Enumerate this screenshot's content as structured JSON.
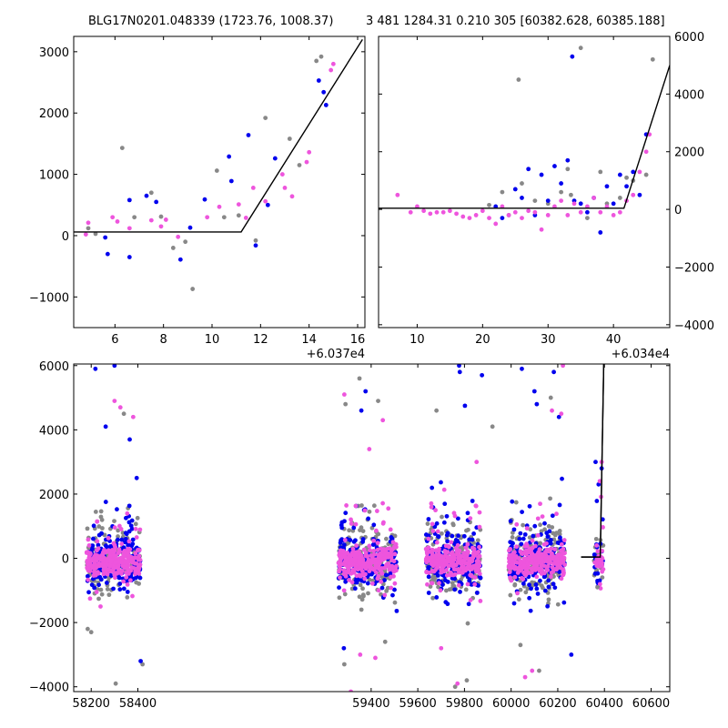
{
  "titles": {
    "left": "BLG17N0201.048339 (1723.76, 1008.37)",
    "right": "3 481 1284.31 0.210 305 [60382.628, 60385.188]"
  },
  "colors": {
    "point_a": "#0000ee",
    "point_b": "#ee55dd",
    "point_c": "#888888",
    "model": "#000000"
  },
  "chart_data": [
    {
      "type": "scatter",
      "title": "BLG17N0201.048339 (1723.76, 1008.37)",
      "xlabel": "",
      "ylabel": "",
      "x_offset_label": "+6.037e4",
      "xlim": [
        4.3,
        16.3
      ],
      "ylim": [
        -1500,
        3250
      ],
      "xticks": [
        6,
        8,
        10,
        12,
        14,
        16
      ],
      "xtick_labels": [
        "6",
        "8",
        "10",
        "12",
        "14",
        "16"
      ],
      "yticks": [
        -1000,
        0,
        1000,
        2000,
        3000
      ],
      "ytick_labels": [
        "−1000",
        "0",
        "1000",
        "2000",
        "3000"
      ],
      "y_axis_side": "left",
      "model_line": {
        "x": [
          4.3,
          11.2,
          16.2
        ],
        "y": [
          60,
          60,
          3200
        ]
      },
      "series": [
        {
          "color": "gray",
          "x": [
            4.9,
            5.2,
            6.3,
            6.8,
            7.5,
            7.9,
            8.4,
            8.9,
            9.2,
            10.2,
            10.5,
            11.1,
            11.8,
            12.2,
            13.2,
            13.6,
            14.3,
            14.5
          ],
          "y": [
            120,
            30,
            1430,
            300,
            700,
            310,
            -200,
            -100,
            -870,
            1060,
            300,
            330,
            -80,
            1920,
            1580,
            1150,
            2850,
            2920
          ]
        },
        {
          "color": "blue",
          "x": [
            5.6,
            5.7,
            6.6,
            6.6,
            7.3,
            7.7,
            8.7,
            9.1,
            9.7,
            10.7,
            10.8,
            11.5,
            11.8,
            12.3,
            12.6,
            14.4,
            14.6,
            14.7
          ],
          "y": [
            -30,
            -300,
            580,
            -350,
            650,
            550,
            -390,
            130,
            590,
            1290,
            890,
            1640,
            -160,
            500,
            1260,
            2530,
            2340,
            2130
          ]
        },
        {
          "color": "pink",
          "x": [
            4.8,
            4.9,
            5.9,
            6.1,
            6.6,
            7.5,
            7.9,
            8.1,
            8.6,
            9.8,
            10.3,
            11.1,
            11.4,
            11.7,
            12.2,
            12.9,
            13.0,
            13.3,
            13.9,
            14.0,
            14.9,
            15.0
          ],
          "y": [
            20,
            210,
            300,
            230,
            120,
            250,
            150,
            260,
            -20,
            300,
            470,
            510,
            290,
            780,
            560,
            1000,
            780,
            640,
            1200,
            1360,
            2700,
            2800
          ]
        }
      ]
    },
    {
      "type": "scatter",
      "title": "3 481 1284.31 0.210 305 [60382.628, 60385.188]",
      "xlabel": "",
      "ylabel": "",
      "x_offset_label": "+6.034e4",
      "xlim": [
        4.1,
        48.6
      ],
      "ylim": [
        -4100,
        6000
      ],
      "xticks": [
        10,
        20,
        30,
        40
      ],
      "xtick_labels": [
        "10",
        "20",
        "30",
        "40"
      ],
      "yticks": [
        -4000,
        -2000,
        0,
        2000,
        4000,
        6000
      ],
      "ytick_labels": [
        "−4000",
        "−2000",
        "0",
        "2000",
        "4000",
        "6000"
      ],
      "y_axis_side": "right",
      "model_line": {
        "x": [
          4.1,
          41.6,
          48.6
        ],
        "y": [
          40,
          40,
          5000
        ]
      },
      "series": [
        {
          "color": "gray",
          "x": [
            21,
            23,
            24,
            25.5,
            26,
            28,
            30,
            32,
            33,
            33.5,
            35,
            36,
            38,
            39,
            41,
            42,
            43,
            45,
            46
          ],
          "y": [
            150,
            600,
            -200,
            4500,
            900,
            300,
            200,
            600,
            1400,
            500,
            5600,
            -300,
            1300,
            200,
            400,
            1100,
            1000,
            1200,
            5200
          ]
        },
        {
          "color": "blue",
          "x": [
            22,
            23,
            25,
            26,
            27,
            28,
            29,
            30,
            31,
            32,
            33,
            33.7,
            34,
            35,
            36,
            37,
            38,
            39,
            40,
            41,
            42,
            43,
            44,
            45
          ],
          "y": [
            100,
            -300,
            700,
            400,
            1400,
            -200,
            1200,
            300,
            1500,
            900,
            1700,
            5300,
            300,
            200,
            -100,
            400,
            -800,
            800,
            200,
            1200,
            800,
            1300,
            500,
            2600
          ]
        },
        {
          "color": "pink",
          "x": [
            7,
            9,
            10,
            11,
            12,
            13,
            14,
            15,
            16,
            17,
            18,
            19,
            20,
            21,
            22,
            23,
            24,
            25,
            26,
            27,
            28,
            29,
            30,
            31,
            32,
            33,
            34,
            35,
            36,
            37,
            38,
            39,
            40,
            41,
            42,
            43,
            44,
            45,
            45.5
          ],
          "y": [
            500,
            -100,
            100,
            -50,
            -150,
            -100,
            -100,
            -50,
            -150,
            -250,
            -300,
            -200,
            -50,
            -300,
            -500,
            100,
            -200,
            -100,
            -300,
            -50,
            -100,
            -700,
            -200,
            100,
            300,
            -200,
            200,
            -100,
            100,
            400,
            -100,
            100,
            -200,
            -100,
            300,
            500,
            1300,
            2000,
            2600
          ]
        }
      ]
    },
    {
      "type": "scatter",
      "title": "",
      "xlabel": "",
      "ylabel": "",
      "xlim": [
        58125,
        60680
      ],
      "ylim": [
        -4150,
        6050
      ],
      "xticks": [
        58200,
        58400,
        59400,
        59600,
        59800,
        60000,
        60200,
        60400,
        60600
      ],
      "xtick_labels": [
        "58200",
        "58400",
        "59400",
        "59600",
        "59800",
        "60000",
        "60200",
        "60400",
        "60600"
      ],
      "yticks": [
        -4000,
        -2000,
        0,
        2000,
        4000,
        6000
      ],
      "ytick_labels": [
        "−4000",
        "−2000",
        "0",
        "2000",
        "4000",
        "6000"
      ],
      "y_axis_side": "left",
      "broken_axis": {
        "gap_from": 58420,
        "gap_to": 59250
      },
      "season_ranges": [
        [
          58180,
          58410
        ],
        [
          59260,
          59510
        ],
        [
          59635,
          59870
        ],
        [
          59990,
          60230
        ],
        [
          60355,
          60395
        ]
      ],
      "season_spread": [
        1.0,
        1.0,
        1.0,
        1.0,
        0.8
      ],
      "model_line": {
        "x": [
          60300,
          60382,
          60397
        ],
        "y": [
          40,
          40,
          6050
        ]
      },
      "outliers": {
        "blue": {
          "x": [
            58218,
            58262,
            58300,
            58365,
            58395,
            59358,
            59376,
            59777,
            59780,
            59802,
            59875,
            60046,
            60100,
            60110,
            60183,
            60205,
            60362,
            60375,
            60388,
            60258,
            58412,
            59283
          ],
          "y": [
            5900,
            4100,
            6000,
            3700,
            2500,
            4600,
            5200,
            6000,
            5800,
            4750,
            5700,
            5900,
            5200,
            4800,
            5800,
            4400,
            3000,
            2300,
            2800,
            -3000,
            -3200,
            -2800
          ]
        },
        "pink": {
          "x": [
            58240,
            58300,
            58325,
            58380,
            59285,
            59392,
            59450,
            59418,
            59770,
            59852,
            59700,
            60222,
            60215,
            60175,
            60060,
            60090,
            60380,
            60388,
            59313,
            59353
          ],
          "y": [
            -1500,
            4900,
            4700,
            4400,
            5100,
            3400,
            4300,
            -3100,
            -3900,
            3000,
            -2800,
            6000,
            4500,
            4600,
            -3700,
            -3500,
            2400,
            3000,
            -4150,
            -3000
          ]
        },
        "gray": {
          "x": [
            58200,
            58305,
            58340,
            58420,
            59290,
            59350,
            59430,
            59460,
            59680,
            59760,
            59810,
            59920,
            60040,
            60120,
            60170,
            60365,
            60370,
            58185,
            59285
          ],
          "y": [
            -2300,
            -3900,
            4500,
            -3300,
            4800,
            5600,
            4900,
            -2600,
            4600,
            -4000,
            -3800,
            4100,
            -2700,
            -3500,
            5000,
            600,
            -900,
            -2200,
            -3300
          ]
        }
      }
    }
  ]
}
